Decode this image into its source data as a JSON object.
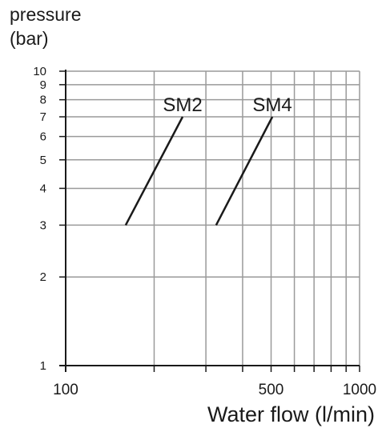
{
  "chart_data": {
    "type": "line",
    "title": "",
    "ylabel_line1": "pressure",
    "ylabel_line2": "(bar)",
    "xlabel": "Water flow (l/min)",
    "xscale": "log",
    "yscale": "log",
    "xlim": [
      100,
      1000
    ],
    "ylim": [
      1,
      10
    ],
    "x_ticks": [
      100,
      200,
      300,
      400,
      500,
      600,
      700,
      800,
      900,
      1000
    ],
    "x_tick_labels": [
      {
        "value": 100,
        "label": "100"
      },
      {
        "value": 500,
        "label": "500"
      },
      {
        "value": 1000,
        "label": "1000"
      }
    ],
    "y_ticks": [
      1,
      2,
      3,
      4,
      5,
      6,
      7,
      8,
      9,
      10
    ],
    "y_tick_labels": [
      "1",
      "2",
      "3",
      "4",
      "5",
      "6",
      "7",
      "8",
      "9",
      "10"
    ],
    "grid": true,
    "line_color": "#1a1a1a",
    "grid_color": "#9a9a9a",
    "series": [
      {
        "name": "SM2",
        "x": [
          160,
          250
        ],
        "y": [
          3,
          7
        ]
      },
      {
        "name": "SM4",
        "x": [
          325,
          505
        ],
        "y": [
          3,
          7
        ]
      }
    ]
  }
}
